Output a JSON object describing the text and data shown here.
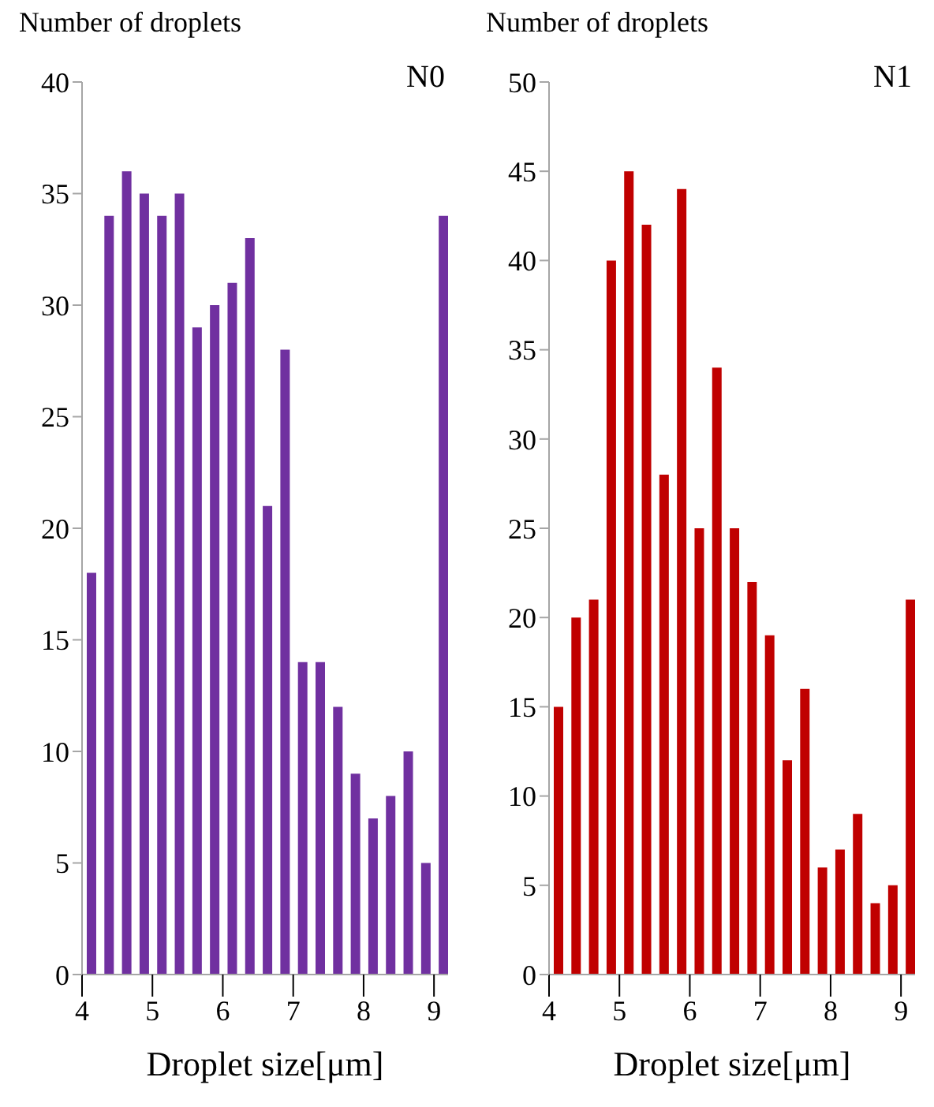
{
  "chart_data": [
    {
      "type": "bar",
      "title": "N0",
      "xlabel": "Droplet size[μm]",
      "ylabel": "Number of droplets",
      "x": [
        4.125,
        4.375,
        4.625,
        4.875,
        5.125,
        5.375,
        5.625,
        5.875,
        6.125,
        6.375,
        6.625,
        6.875,
        7.125,
        7.375,
        7.625,
        7.875,
        8.125,
        8.375,
        8.625,
        8.875,
        9.125
      ],
      "values": [
        18,
        34,
        36,
        35,
        34,
        35,
        29,
        30,
        31,
        33,
        21,
        28,
        14,
        14,
        12,
        9,
        7,
        8,
        10,
        5,
        34
      ],
      "color": "#7030a0",
      "xlim": [
        4,
        9.2
      ],
      "xticks": [
        4,
        5,
        6,
        7,
        8,
        9
      ],
      "ylim": [
        0,
        40
      ],
      "yticks": [
        0,
        5,
        10,
        15,
        20,
        25,
        30,
        35,
        40
      ],
      "grid": false,
      "legend": false
    },
    {
      "type": "bar",
      "title": "N1",
      "xlabel": "Droplet size[μm]",
      "ylabel": "Number of droplets",
      "x": [
        4.125,
        4.375,
        4.625,
        4.875,
        5.125,
        5.375,
        5.625,
        5.875,
        6.125,
        6.375,
        6.625,
        6.875,
        7.125,
        7.375,
        7.625,
        7.875,
        8.125,
        8.375,
        8.625,
        8.875,
        9.125
      ],
      "values": [
        15,
        20,
        21,
        40,
        45,
        42,
        28,
        44,
        25,
        34,
        25,
        22,
        19,
        12,
        16,
        6,
        7,
        9,
        4,
        5,
        21
      ],
      "color": "#c00000",
      "xlim": [
        4,
        9.2
      ],
      "xticks": [
        4,
        5,
        6,
        7,
        8,
        9
      ],
      "ylim": [
        0,
        50
      ],
      "yticks": [
        0,
        5,
        10,
        15,
        20,
        25,
        30,
        35,
        40,
        45,
        50
      ],
      "grid": false,
      "legend": false
    }
  ]
}
